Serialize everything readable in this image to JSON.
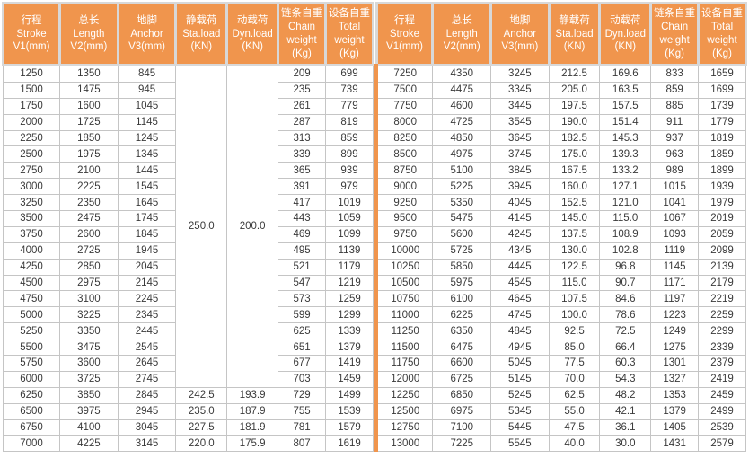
{
  "accent_color": "#F0954D",
  "grid_color": "#C5C5C5",
  "header_gutter_color": "#D8D8D8",
  "header_text_color": "#FFFFFF",
  "columns": [
    "行程\nStroke\nV1(mm)",
    "总长\nLength\nV2(mm)",
    "地脚\nAnchor\nV3(mm)",
    "静载荷\nSta.load\n(KN)",
    "动载荷\nDyn.load\n(KN)",
    "链条自重\nChain\nweight\n(Kg)",
    "设备自重\nTotal\nweight\n(Kg)"
  ],
  "left_table": {
    "merged_sta_load": "250.0",
    "merged_dyn_load": "200.0",
    "merged_row_span": 20,
    "rows": [
      [
        "1250",
        "1350",
        "845",
        {
          "v": "250.0",
          "rs": 20
        },
        {
          "v": "200.0",
          "rs": 20
        },
        "209",
        "699"
      ],
      [
        "1500",
        "1475",
        "945",
        "235",
        "739"
      ],
      [
        "1750",
        "1600",
        "1045",
        "261",
        "779"
      ],
      [
        "2000",
        "1725",
        "1145",
        "287",
        "819"
      ],
      [
        "2250",
        "1850",
        "1245",
        "313",
        "859"
      ],
      [
        "2500",
        "1975",
        "1345",
        "339",
        "899"
      ],
      [
        "2750",
        "2100",
        "1445",
        "365",
        "939"
      ],
      [
        "3000",
        "2225",
        "1545",
        "391",
        "979"
      ],
      [
        "3250",
        "2350",
        "1645",
        "417",
        "1019"
      ],
      [
        "3500",
        "2475",
        "1745",
        "443",
        "1059"
      ],
      [
        "3750",
        "2600",
        "1845",
        "469",
        "1099"
      ],
      [
        "4000",
        "2725",
        "1945",
        "495",
        "1139"
      ],
      [
        "4250",
        "2850",
        "2045",
        "521",
        "1179"
      ],
      [
        "4500",
        "2975",
        "2145",
        "547",
        "1219"
      ],
      [
        "4750",
        "3100",
        "2245",
        "573",
        "1259"
      ],
      [
        "5000",
        "3225",
        "2345",
        "599",
        "1299"
      ],
      [
        "5250",
        "3350",
        "2445",
        "625",
        "1339"
      ],
      [
        "5500",
        "3475",
        "2545",
        "651",
        "1379"
      ],
      [
        "5750",
        "3600",
        "2645",
        "677",
        "1419"
      ],
      [
        "6000",
        "3725",
        "2745",
        "703",
        "1459"
      ],
      [
        "6250",
        "3850",
        "2845",
        "242.5",
        "193.9",
        "729",
        "1499"
      ],
      [
        "6500",
        "3975",
        "2945",
        "235.0",
        "187.9",
        "755",
        "1539"
      ],
      [
        "6750",
        "4100",
        "3045",
        "227.5",
        "181.9",
        "781",
        "1579"
      ],
      [
        "7000",
        "4225",
        "3145",
        "220.0",
        "175.9",
        "807",
        "1619"
      ]
    ]
  },
  "right_table": {
    "rows": [
      [
        "7250",
        "4350",
        "3245",
        "212.5",
        "169.6",
        "833",
        "1659"
      ],
      [
        "7500",
        "4475",
        "3345",
        "205.0",
        "163.5",
        "859",
        "1699"
      ],
      [
        "7750",
        "4600",
        "3445",
        "197.5",
        "157.5",
        "885",
        "1739"
      ],
      [
        "8000",
        "4725",
        "3545",
        "190.0",
        "151.4",
        "911",
        "1779"
      ],
      [
        "8250",
        "4850",
        "3645",
        "182.5",
        "145.3",
        "937",
        "1819"
      ],
      [
        "8500",
        "4975",
        "3745",
        "175.0",
        "139.3",
        "963",
        "1859"
      ],
      [
        "8750",
        "5100",
        "3845",
        "167.5",
        "133.2",
        "989",
        "1899"
      ],
      [
        "9000",
        "5225",
        "3945",
        "160.0",
        "127.1",
        "1015",
        "1939"
      ],
      [
        "9250",
        "5350",
        "4045",
        "152.5",
        "121.0",
        "1041",
        "1979"
      ],
      [
        "9500",
        "5475",
        "4145",
        "145.0",
        "115.0",
        "1067",
        "2019"
      ],
      [
        "9750",
        "5600",
        "4245",
        "137.5",
        "108.9",
        "1093",
        "2059"
      ],
      [
        "10000",
        "5725",
        "4345",
        "130.0",
        "102.8",
        "1119",
        "2099"
      ],
      [
        "10250",
        "5850",
        "4445",
        "122.5",
        "96.8",
        "1145",
        "2139"
      ],
      [
        "10500",
        "5975",
        "4545",
        "115.0",
        "90.7",
        "1171",
        "2179"
      ],
      [
        "10750",
        "6100",
        "4645",
        "107.5",
        "84.6",
        "1197",
        "2219"
      ],
      [
        "11000",
        "6225",
        "4745",
        "100.0",
        "78.6",
        "1223",
        "2259"
      ],
      [
        "11250",
        "6350",
        "4845",
        "92.5",
        "72.5",
        "1249",
        "2299"
      ],
      [
        "11500",
        "6475",
        "4945",
        "85.0",
        "66.4",
        "1275",
        "2339"
      ],
      [
        "11750",
        "6600",
        "5045",
        "77.5",
        "60.3",
        "1301",
        "2379"
      ],
      [
        "12000",
        "6725",
        "5145",
        "70.0",
        "54.3",
        "1327",
        "2419"
      ],
      [
        "12250",
        "6850",
        "5245",
        "62.5",
        "48.2",
        "1353",
        "2459"
      ],
      [
        "12500",
        "6975",
        "5345",
        "55.0",
        "42.1",
        "1379",
        "2499"
      ],
      [
        "12750",
        "7100",
        "5445",
        "47.5",
        "36.1",
        "1405",
        "2539"
      ],
      [
        "13000",
        "7225",
        "5545",
        "40.0",
        "30.0",
        "1431",
        "2579"
      ]
    ]
  }
}
